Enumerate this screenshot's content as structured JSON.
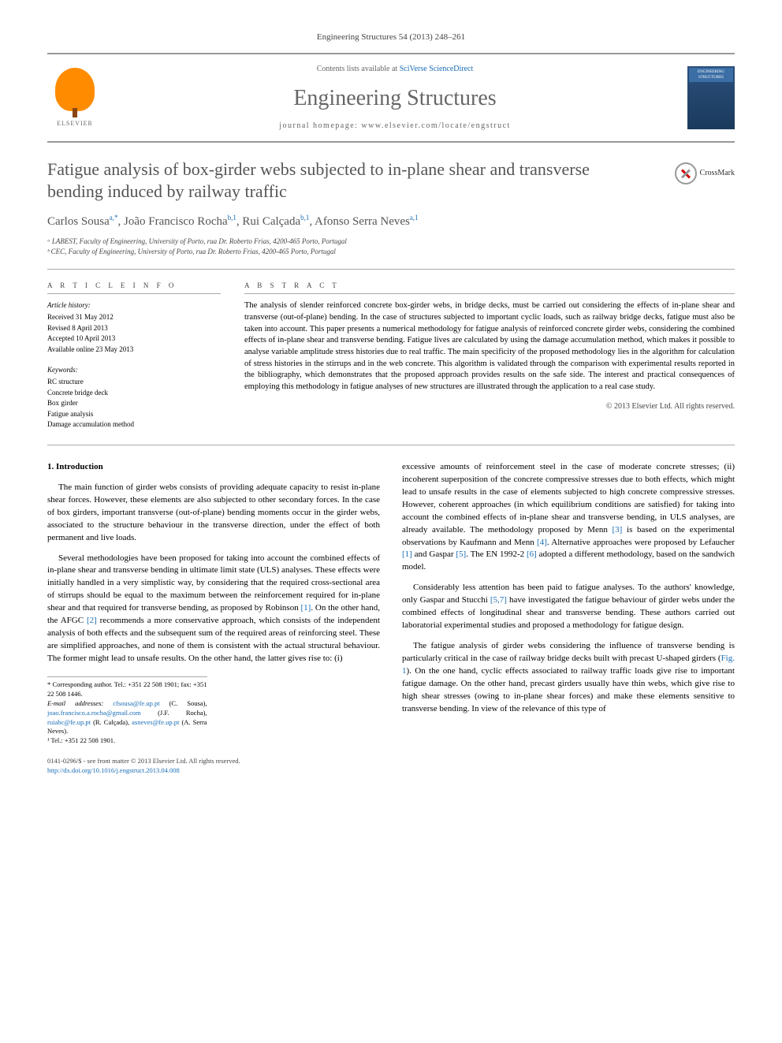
{
  "journal_ref": "Engineering Structures 54 (2013) 248–261",
  "header": {
    "contents_prefix": "Contents lists available at ",
    "contents_link": "SciVerse ScienceDirect",
    "journal_name": "Engineering Structures",
    "homepage_prefix": "journal homepage: ",
    "homepage_url": "www.elsevier.com/locate/engstruct",
    "publisher_name": "ELSEVIER",
    "cover_label": "ENGINEERING STRUCTURES"
  },
  "crossmark": "CrossMark",
  "title": "Fatigue analysis of box-girder webs subjected to in-plane shear and transverse bending induced by railway traffic",
  "authors_html": "Carlos Sousa<sup>a,*</sup>, João Francisco Rocha<sup>b,1</sup>, Rui Calçada<sup>b,1</sup>, Afonso Serra Neves<sup>a,1</sup>",
  "affiliations": [
    "ᵃ LABEST, Faculty of Engineering, University of Porto, rua Dr. Roberto Frias, 4200-465 Porto, Portugal",
    "ᵇ CEC, Faculty of Engineering, University of Porto, rua Dr. Roberto Frias, 4200-465 Porto, Portugal"
  ],
  "article_info": {
    "heading": "A R T I C L E   I N F O",
    "history_label": "Article history:",
    "history": [
      "Received 31 May 2012",
      "Revised 8 April 2013",
      "Accepted 10 April 2013",
      "Available online 23 May 2013"
    ],
    "keywords_label": "Keywords:",
    "keywords": [
      "RC structure",
      "Concrete bridge deck",
      "Box girder",
      "Fatigue analysis",
      "Damage accumulation method"
    ]
  },
  "abstract": {
    "heading": "A B S T R A C T",
    "text": "The analysis of slender reinforced concrete box-girder webs, in bridge decks, must be carried out considering the effects of in-plane shear and transverse (out-of-plane) bending. In the case of structures subjected to important cyclic loads, such as railway bridge decks, fatigue must also be taken into account. This paper presents a numerical methodology for fatigue analysis of reinforced concrete girder webs, considering the combined effects of in-plane shear and transverse bending. Fatigue lives are calculated by using the damage accumulation method, which makes it possible to analyse variable amplitude stress histories due to real traffic. The main specificity of the proposed methodology lies in the algorithm for calculation of stress histories in the stirrups and in the web concrete. This algorithm is validated through the comparison with experimental results reported in the bibliography, which demonstrates that the proposed approach provides results on the safe side. The interest and practical consequences of employing this methodology in fatigue analyses of new structures are illustrated through the application to a real case study.",
    "copyright": "© 2013 Elsevier Ltd. All rights reserved."
  },
  "section1": {
    "heading": "1. Introduction",
    "p1": "The main function of girder webs consists of providing adequate capacity to resist in-plane shear forces. However, these elements are also subjected to other secondary forces. In the case of box girders, important transverse (out-of-plane) bending moments occur in the girder webs, associated to the structure behaviour in the transverse direction, under the effect of both permanent and live loads.",
    "p2_before_ref1": "Several methodologies have been proposed for taking into account the combined effects of in-plane shear and transverse bending in ultimate limit state (ULS) analyses. These effects were initially handled in a very simplistic way, by considering that the required cross-sectional area of stirrups should be equal to the maximum between the reinforcement required for in-plane shear and that required for transverse bending, as proposed by Robinson ",
    "ref1": "[1]",
    "p2_mid": ". On the other hand, the AFGC ",
    "ref2": "[2]",
    "p2_after_ref2": " recommends a more conservative approach, which consists of the independent analysis of both effects and the subsequent sum of the required areas of reinforcing steel. These are simplified approaches, and none of them is consistent with the actual structural behaviour. The former might lead to unsafe results. On the other hand, the latter gives rise to: (i)",
    "p3_start": "excessive amounts of reinforcement steel in the case of moderate concrete stresses; (ii) incoherent superposition of the concrete compressive stresses due to both effects, which might lead to unsafe results in the case of elements subjected to high concrete compressive stresses. However, coherent approaches (in which equilibrium conditions are satisfied) for taking into account the combined effects of in-plane shear and transverse bending, in ULS analyses, are already available. The methodology proposed by Menn ",
    "ref3": "[3]",
    "p3_mid1": " is based on the experimental observations by Kaufmann and Menn ",
    "ref4": "[4]",
    "p3_mid2": ". Alternative approaches were proposed by Lefaucher ",
    "ref1b": "[1]",
    "p3_mid3": " and Gaspar ",
    "ref5": "[5]",
    "p3_mid4": ". The EN 1992-2 ",
    "ref6": "[6]",
    "p3_end": " adopted a different methodology, based on the sandwich model.",
    "p4_start": "Considerably less attention has been paid to fatigue analyses. To the authors' knowledge, only Gaspar and Stucchi ",
    "ref57": "[5,7]",
    "p4_end": " have investigated the fatigue behaviour of girder webs under the combined effects of longitudinal shear and transverse bending. These authors carried out laboratorial experimental studies and proposed a methodology for fatigue design.",
    "p5_start": "The fatigue analysis of girder webs considering the influence of transverse bending is particularly critical in the case of railway bridge decks built with precast U-shaped girders (",
    "fig1": "Fig. 1",
    "p5_end": "). On the one hand, cyclic effects associated to railway traffic loads give rise to important fatigue damage. On the other hand, precast girders usually have thin webs, which give rise to high shear stresses (owing to in-plane shear forces) and make these elements sensitive to transverse bending. In view of the relevance of this type of"
  },
  "footnotes": {
    "corr": "* Corresponding author. Tel.: +351 22 508 1901; fax: +351 22 508 1446.",
    "email_label": "E-mail addresses: ",
    "emails_text": "cfsousa@fe.up.pt (C. Sousa), joao.francisco.a.rocha@gmail.com (J.F. Rocha), ruiabc@fe.up.pt (R. Calçada), asneves@fe.up.pt (A. Serra Neves).",
    "tel": "¹ Tel.: +351 22 508 1901."
  },
  "footer": {
    "issn": "0141-0296/$ - see front matter © 2013 Elsevier Ltd. All rights reserved.",
    "doi": "http://dx.doi.org/10.1016/j.engstruct.2013.04.008"
  },
  "colors": {
    "link": "#1a6db5",
    "heading": "#555555",
    "text": "#000000",
    "border": "#999999",
    "elsevier_orange": "#ff8c00"
  }
}
